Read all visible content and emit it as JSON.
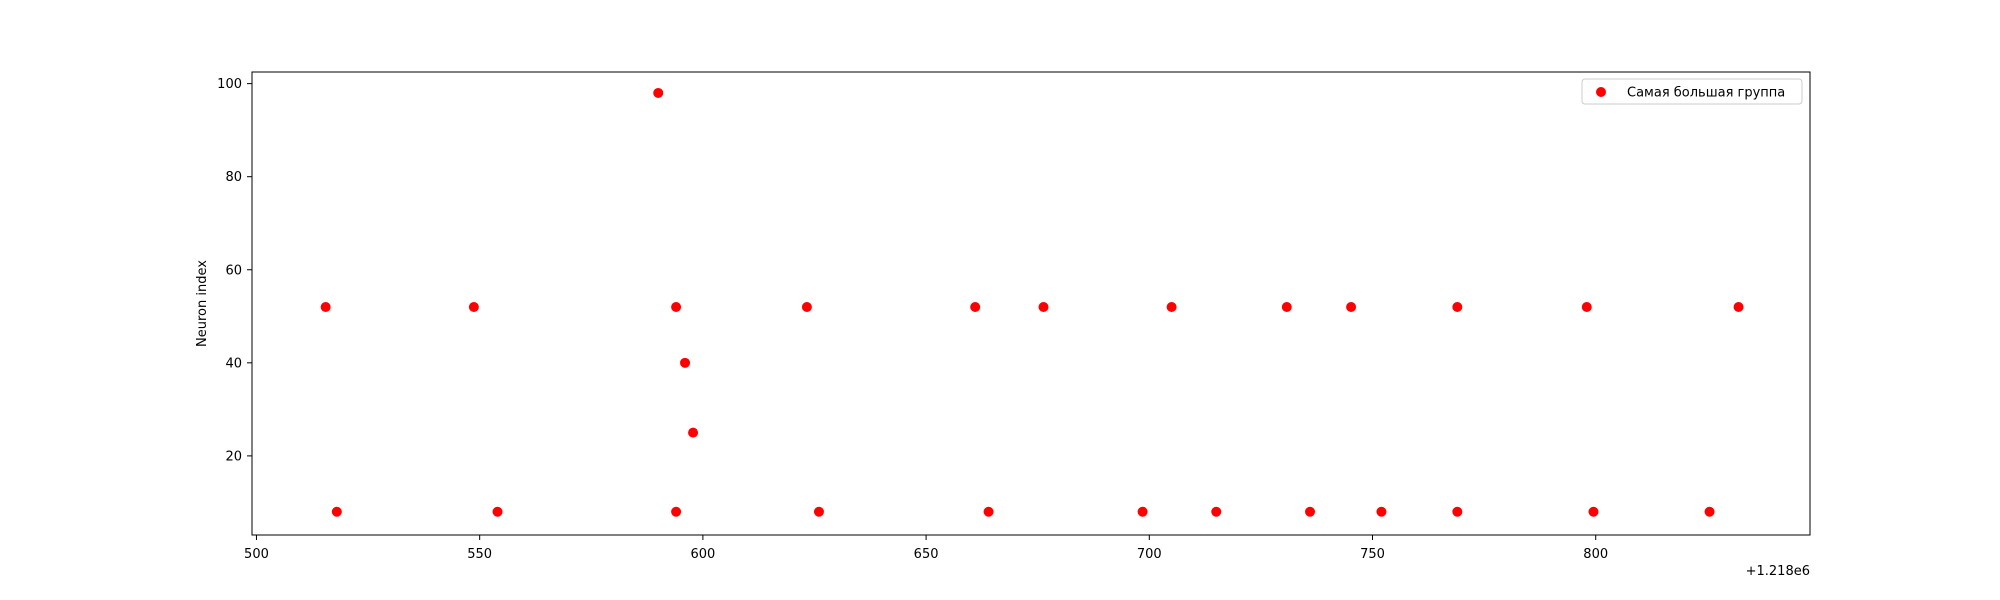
{
  "chart_data": {
    "type": "scatter",
    "title": "",
    "xlabel": "",
    "ylabel": "Neuron index",
    "x_offset_text": "+1.218e6",
    "xlim": [
      499,
      848
    ],
    "ylim": [
      3,
      102.5
    ],
    "xticks": [
      500,
      550,
      600,
      650,
      700,
      750,
      800
    ],
    "yticks": [
      20,
      40,
      60,
      80,
      100
    ],
    "grid": false,
    "legend": {
      "position": "top-right",
      "entries": [
        "Самая большая группа"
      ]
    },
    "series": [
      {
        "name": "Самая большая группа",
        "color": "#ff0000",
        "marker": "circle",
        "points": [
          [
            515.5,
            52
          ],
          [
            548.7,
            52
          ],
          [
            594.0,
            52
          ],
          [
            623.3,
            52
          ],
          [
            661.0,
            52
          ],
          [
            676.3,
            52
          ],
          [
            705.0,
            52
          ],
          [
            730.8,
            52
          ],
          [
            745.2,
            52
          ],
          [
            769.0,
            52
          ],
          [
            798.0,
            52
          ],
          [
            832.0,
            52
          ],
          [
            590.0,
            98
          ],
          [
            596.0,
            40
          ],
          [
            597.8,
            25
          ],
          [
            518.0,
            8
          ],
          [
            554.0,
            8
          ],
          [
            594.0,
            8
          ],
          [
            626.0,
            8
          ],
          [
            664.0,
            8
          ],
          [
            698.5,
            8
          ],
          [
            715.0,
            8
          ],
          [
            736.0,
            8
          ],
          [
            752.0,
            8
          ],
          [
            769.0,
            8
          ],
          [
            799.5,
            8
          ],
          [
            825.5,
            8
          ]
        ]
      }
    ]
  }
}
